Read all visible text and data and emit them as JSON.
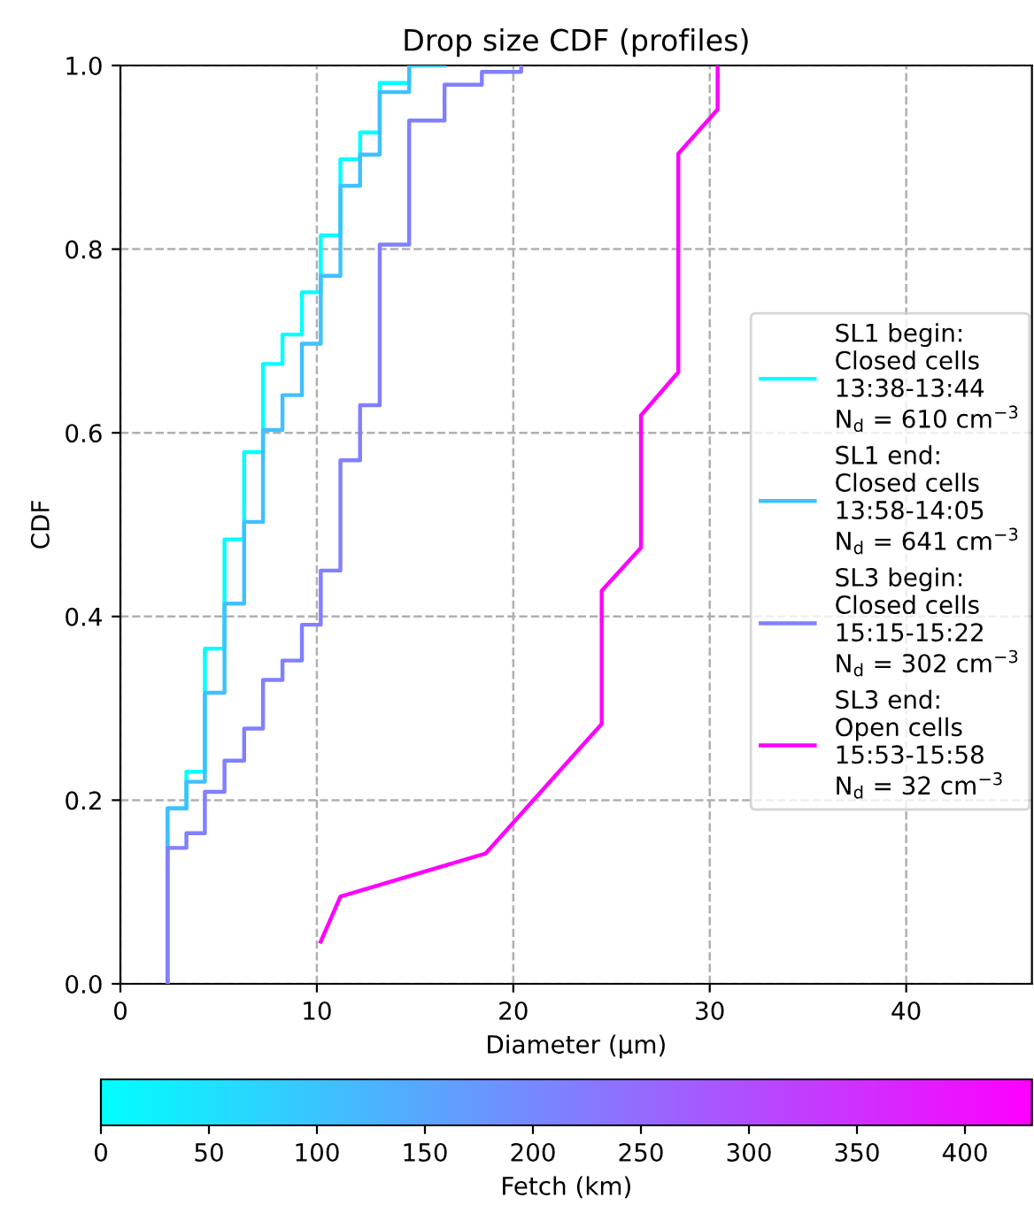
{
  "chart_data": {
    "type": "step",
    "title": "Drop size CDF (profiles)",
    "xlabel": "Diameter (µm)",
    "ylabel": "CDF",
    "clabel": "Fetch (km)",
    "xlim": [
      0,
      46.4
    ],
    "xticks": [
      0,
      10,
      20,
      30,
      40
    ],
    "ylim": [
      0,
      1
    ],
    "yticks": [
      {
        "value": 0,
        "label": "0.0"
      },
      {
        "value": 0.2,
        "label": "0.2"
      },
      {
        "value": 0.4,
        "label": "0.4"
      },
      {
        "value": 0.6,
        "label": "0.6"
      },
      {
        "value": 0.8,
        "label": "0.8"
      },
      {
        "value": 1,
        "label": "1.0"
      }
    ],
    "clim": [
      0,
      431
    ],
    "cticks": [
      0,
      50,
      100,
      150,
      200,
      250,
      300,
      350,
      400
    ],
    "grid": true,
    "legend": "right",
    "line_style": "solid",
    "marker": "none",
    "series": [
      {
        "name": "SL1 begin:\nClosed cells\n13:38-13:44\nN$_{d}$ = 610 cm$^{−3}$",
        "color": "#00ffff",
        "x": [
          2.4,
          2.4,
          3.36,
          4.3,
          5.3,
          6.3,
          7.26,
          8.25,
          9.24,
          10.2,
          11.2,
          12.2,
          13.2,
          14.7
        ],
        "values": [
          0,
          0.191,
          0.231,
          0.365,
          0.484,
          0.579,
          0.675,
          0.707,
          0.753,
          0.815,
          0.898,
          0.927,
          0.981,
          1.0
        ]
      },
      {
        "name": "SL1 end:\nClosed cells\n13:58-14:05\nN$_{d}$ = 641 cm$^{−3}$",
        "color": "#40c0ff",
        "x": [
          2.4,
          2.4,
          3.36,
          4.3,
          5.3,
          6.3,
          7.26,
          8.25,
          9.24,
          10.2,
          11.2,
          12.2,
          13.2,
          14.7,
          16.5
        ],
        "values": [
          0,
          0.191,
          0.22,
          0.317,
          0.414,
          0.503,
          0.603,
          0.641,
          0.697,
          0.771,
          0.869,
          0.903,
          0.971,
          1.0,
          1.0
        ]
      },
      {
        "name": "SL3 begin:\nClosed cells\n15:15-15:22\nN$_{d}$ = 302 cm$^{−3}$",
        "color": "#8080ff",
        "x": [
          2.4,
          2.4,
          3.36,
          4.3,
          5.3,
          6.3,
          7.26,
          8.25,
          9.24,
          10.2,
          11.2,
          12.2,
          13.2,
          14.7,
          16.5,
          18.4,
          20.4
        ],
        "values": [
          0,
          0.148,
          0.164,
          0.209,
          0.243,
          0.278,
          0.331,
          0.352,
          0.391,
          0.45,
          0.57,
          0.63,
          0.805,
          0.94,
          0.979,
          0.993,
          1.0
        ]
      },
      {
        "name": "SL3 end:\nOpen cells\n15:53-15:58\nN$_{d}$ = 32 cm$^{−3}$",
        "color": "#ff00ff",
        "type": "line",
        "x": [
          10.2,
          11.2,
          18.6,
          24.5,
          24.5,
          26.5,
          26.5,
          28.4,
          28.4,
          30.4,
          30.4
        ],
        "values": [
          0.046,
          0.095,
          0.142,
          0.283,
          0.428,
          0.475,
          0.619,
          0.666,
          0.904,
          0.952,
          1.0
        ]
      }
    ]
  }
}
